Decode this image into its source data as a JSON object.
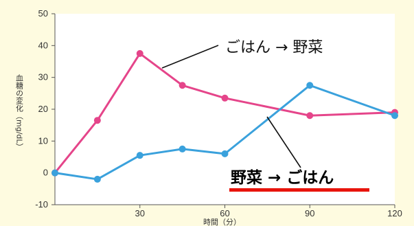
{
  "chart_data": {
    "type": "line",
    "xlabel": "時間（分）",
    "ylabel": "血糖の変化（mg/dL）",
    "ylim": [
      -10,
      50
    ],
    "xlim": [
      0,
      120
    ],
    "y_ticks": [
      "50",
      "40",
      "30",
      "20",
      "10",
      "0",
      "-10"
    ],
    "x_ticks": [
      "30",
      "60",
      "90",
      "120"
    ],
    "grid": false,
    "background": "#fefbe0",
    "series": [
      {
        "name": "ごはん → 野菜",
        "color": "#e5458a",
        "x": [
          0,
          15,
          30,
          45,
          60,
          90,
          120
        ],
        "values": [
          0,
          16.5,
          37.5,
          27.5,
          23.5,
          18,
          19
        ]
      },
      {
        "name": "野菜 → ごはん",
        "color": "#3aa1dc",
        "x": [
          0,
          15,
          30,
          45,
          60,
          90,
          120
        ],
        "values": [
          0,
          -2,
          5.5,
          7.5,
          6,
          27.5,
          18
        ]
      }
    ],
    "annotations": [
      {
        "text": "ごはん → 野菜"
      },
      {
        "text": "野菜 → ごはん",
        "underline_color": "#e8140c"
      }
    ]
  }
}
